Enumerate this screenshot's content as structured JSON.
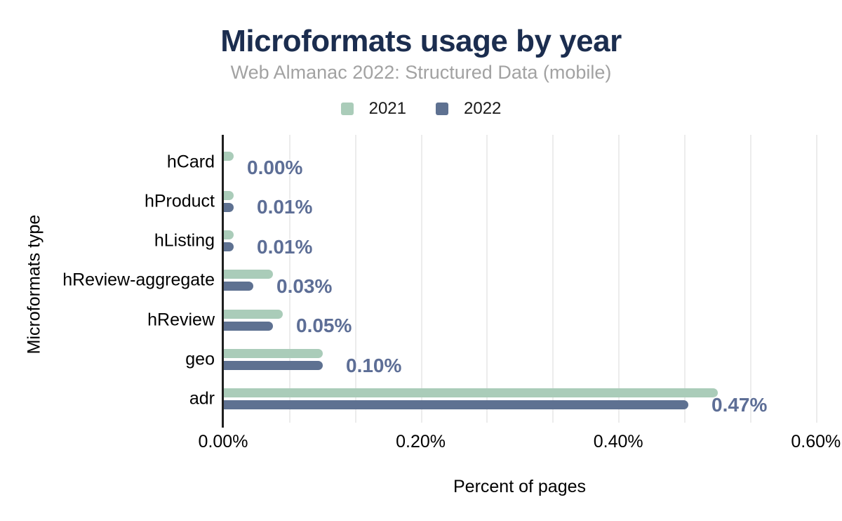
{
  "header": {
    "title": "Microformats usage by year",
    "subtitle": "Web Almanac 2022: Structured Data (mobile)"
  },
  "legend": [
    {
      "label": "2021",
      "color": "#aaccb9"
    },
    {
      "label": "2022",
      "color": "#5e7191"
    }
  ],
  "theme": {
    "title_color": "#1b2d4f",
    "subtitle_color": "#a2a2a2",
    "value_label_color": "#5d6e96",
    "grid_color": "#ececec",
    "axis_color": "#1f1f1f",
    "text_color": "#000000"
  },
  "chart_data": {
    "type": "bar",
    "orientation": "horizontal",
    "title": "Microformats usage by year",
    "subtitle": "Web Almanac 2022: Structured Data (mobile)",
    "categories": [
      "hCard",
      "hProduct",
      "hListing",
      "hReview-aggregate",
      "hReview",
      "geo",
      "adr"
    ],
    "series": [
      {
        "name": "2021",
        "color": "#aaccb9",
        "values": [
          0.01,
          0.01,
          0.01,
          0.05,
          0.06,
          0.1,
          0.5
        ]
      },
      {
        "name": "2022",
        "color": "#5e7191",
        "values": [
          0.0,
          0.01,
          0.01,
          0.03,
          0.05,
          0.1,
          0.47
        ]
      }
    ],
    "data_labels": [
      "0.00%",
      "0.01%",
      "0.01%",
      "0.03%",
      "0.05%",
      "0.10%",
      "0.47%"
    ],
    "data_labels_series": "2022",
    "xlabel": "Percent of pages",
    "ylabel": "Microformats type",
    "x_ticks": [
      "0.00%",
      "0.20%",
      "0.40%",
      "0.60%"
    ],
    "x_tick_values": [
      0.0,
      0.2,
      0.4,
      0.6
    ],
    "xlim": [
      0,
      0.6
    ],
    "grid": "vertical, minor gridlines every 0.0667%",
    "legend_position": "top"
  }
}
